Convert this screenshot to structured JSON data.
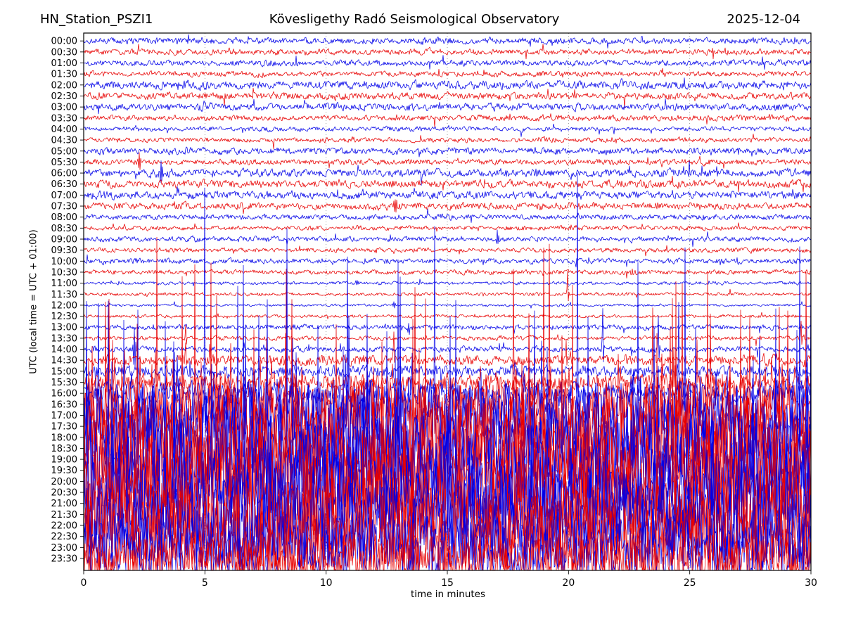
{
  "header": {
    "station": "HN_Station_PSZI1",
    "observatory": "Kövesligethy Radó Seismological Observatory",
    "date": "2025-12-04"
  },
  "axes": {
    "x_label": "time in minutes",
    "y_label": "UTC (local time = UTC + 01:00)",
    "x_ticks": [
      0,
      5,
      10,
      15,
      20,
      25,
      30
    ],
    "x_range": [
      0,
      30
    ],
    "grid_x": [
      5,
      10,
      15,
      20,
      25
    ],
    "grid_style": "dotted"
  },
  "colors": {
    "trace_even": "#0000e8",
    "trace_odd": "#e80000",
    "grid": "#808080",
    "frame": "#000000",
    "text": "#000000",
    "background": "#ffffff"
  },
  "chart_data": {
    "type": "line",
    "subtype": "helicorder-dayplot",
    "title": "HN_Station_PSZI1 — Kövesligethy Radó Seismological Observatory — 2025-12-04",
    "xlabel": "time in minutes",
    "ylabel": "UTC (local time = UTC + 01:00)",
    "x_range_minutes": [
      0,
      30
    ],
    "minutes_per_row": 30,
    "amplitude_units": "approx peak half-amplitude in screen px",
    "spike_format": "[minute, height_px, direction(1=up,-1=down,0=bipolar)]",
    "rows": [
      {
        "time": "00:00",
        "color": "blue",
        "amplitude": 5,
        "spikes": []
      },
      {
        "time": "00:30",
        "color": "red",
        "amplitude": 4.5,
        "spikes": []
      },
      {
        "time": "01:00",
        "color": "blue",
        "amplitude": 4.5,
        "spikes": []
      },
      {
        "time": "01:30",
        "color": "red",
        "amplitude": 4,
        "spikes": []
      },
      {
        "time": "02:00",
        "color": "blue",
        "amplitude": 6.5,
        "spikes": []
      },
      {
        "time": "02:30",
        "color": "red",
        "amplitude": 5.5,
        "spikes": []
      },
      {
        "time": "03:00",
        "color": "blue",
        "amplitude": 5.5,
        "spikes": []
      },
      {
        "time": "03:30",
        "color": "red",
        "amplitude": 4.5,
        "spikes": []
      },
      {
        "time": "04:00",
        "color": "blue",
        "amplitude": 3.5,
        "spikes": []
      },
      {
        "time": "04:30",
        "color": "red",
        "amplitude": 3.5,
        "spikes": []
      },
      {
        "time": "05:00",
        "color": "blue",
        "amplitude": 5,
        "spikes": []
      },
      {
        "time": "05:30",
        "color": "red",
        "amplitude": 4.5,
        "spikes": [
          [
            2.3,
            13,
            0
          ]
        ]
      },
      {
        "time": "06:00",
        "color": "blue",
        "amplitude": 6,
        "spikes": [
          [
            3.2,
            16,
            0
          ]
        ]
      },
      {
        "time": "06:30",
        "color": "red",
        "amplitude": 6,
        "spikes": []
      },
      {
        "time": "07:00",
        "color": "blue",
        "amplitude": 6,
        "spikes": []
      },
      {
        "time": "07:30",
        "color": "red",
        "amplitude": 5.5,
        "spikes": [
          [
            12.85,
            13,
            0
          ]
        ]
      },
      {
        "time": "08:00",
        "color": "blue",
        "amplitude": 4,
        "spikes": []
      },
      {
        "time": "08:30",
        "color": "red",
        "amplitude": 3.5,
        "spikes": []
      },
      {
        "time": "09:00",
        "color": "blue",
        "amplitude": 4,
        "spikes": [
          [
            17.05,
            12,
            0
          ]
        ]
      },
      {
        "time": "09:30",
        "color": "red",
        "amplitude": 3.5,
        "spikes": []
      },
      {
        "time": "10:00",
        "color": "blue",
        "amplitude": 4,
        "spikes": [
          [
            20.3,
            9,
            -1
          ],
          [
            22.4,
            10,
            -1
          ]
        ]
      },
      {
        "time": "10:30",
        "color": "red",
        "amplitude": 3.5,
        "spikes": []
      },
      {
        "time": "11:00",
        "color": "blue",
        "amplitude": 2.5,
        "spikes": [
          [
            11.3,
            4,
            0
          ]
        ]
      },
      {
        "time": "11:30",
        "color": "red",
        "amplitude": 2.5,
        "spikes": [
          [
            19.95,
            34,
            1
          ]
        ]
      },
      {
        "time": "12:00",
        "color": "blue",
        "amplitude": 2,
        "spikes": [
          [
            12.8,
            4,
            0
          ]
        ]
      },
      {
        "time": "12:30",
        "color": "red",
        "amplitude": 2.5,
        "spikes": []
      },
      {
        "time": "13:00",
        "color": "blue",
        "amplitude": 4,
        "spikes": [
          [
            13.4,
            9,
            0
          ]
        ]
      },
      {
        "time": "13:30",
        "color": "red",
        "amplitude": 3.5,
        "spikes": [
          [
            4.2,
            20,
            1
          ],
          [
            29.6,
            26,
            1
          ]
        ]
      },
      {
        "time": "14:00",
        "color": "blue",
        "amplitude": 4.5,
        "spikes": [
          [
            2.1,
            34,
            0
          ],
          [
            10.6,
            10,
            1
          ],
          [
            21.4,
            55,
            1
          ],
          [
            23.7,
            50,
            1
          ]
        ]
      },
      {
        "time": "14:30",
        "color": "red",
        "amplitude": 8,
        "spikes": [
          [
            4.2,
            28,
            1
          ],
          [
            12.8,
            35,
            1
          ],
          [
            19.9,
            25,
            1
          ]
        ]
      },
      {
        "time": "15:00",
        "color": "blue",
        "amplitude": 9,
        "spikes": [
          [
            0.5,
            25,
            -1
          ]
        ]
      },
      {
        "time": "15:30",
        "color": "red",
        "amplitude": 13,
        "spikes": [
          [
            1.0,
            30,
            0
          ]
        ]
      },
      {
        "time": "16:00",
        "color": "blue",
        "amplitude": 18,
        "spikes": []
      },
      {
        "time": "16:30",
        "color": "red",
        "amplitude": 38,
        "spikes": []
      },
      {
        "time": "17:00",
        "color": "blue",
        "amplitude": 60,
        "spikes": []
      },
      {
        "time": "17:30",
        "color": "red",
        "amplitude": 75,
        "spikes": []
      },
      {
        "time": "18:00",
        "color": "blue",
        "amplitude": 85,
        "spikes": []
      },
      {
        "time": "18:30",
        "color": "red",
        "amplitude": 88,
        "spikes": []
      },
      {
        "time": "19:00",
        "color": "blue",
        "amplitude": 90,
        "spikes": []
      },
      {
        "time": "19:30",
        "color": "red",
        "amplitude": 90,
        "spikes": []
      },
      {
        "time": "20:00",
        "color": "blue",
        "amplitude": 90,
        "spikes": []
      },
      {
        "time": "20:30",
        "color": "red",
        "amplitude": 88,
        "spikes": []
      },
      {
        "time": "21:00",
        "color": "blue",
        "amplitude": 85,
        "spikes": []
      },
      {
        "time": "21:30",
        "color": "red",
        "amplitude": 82,
        "spikes": []
      },
      {
        "time": "22:00",
        "color": "blue",
        "amplitude": 78,
        "spikes": []
      },
      {
        "time": "22:30",
        "color": "red",
        "amplitude": 70,
        "spikes": []
      },
      {
        "time": "23:00",
        "color": "blue",
        "amplitude": 55,
        "spikes": []
      },
      {
        "time": "23:30",
        "color": "red",
        "amplitude": 40,
        "spikes": []
      }
    ]
  }
}
